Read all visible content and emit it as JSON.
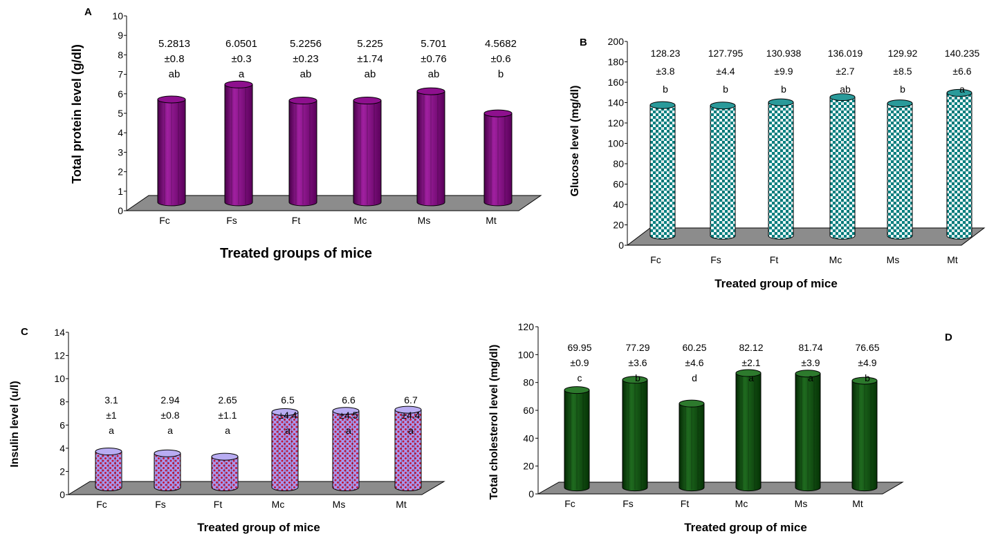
{
  "chart_data": [
    {
      "panel": "A",
      "type": "bar",
      "categories": [
        "Fc",
        "Fs",
        "Ft",
        "Mc",
        "Ms",
        "Mt"
      ],
      "values": [
        5.2813,
        6.0501,
        5.2256,
        5.225,
        5.701,
        4.5682
      ],
      "value_labels": [
        "5.2813",
        "6.0501",
        "5.2256",
        "5.225",
        "5.701",
        "4.5682"
      ],
      "errors": [
        "±0.8",
        "±0.3",
        "±0.23",
        "±1.74",
        "±0.76",
        "±0.6"
      ],
      "letters": [
        "ab",
        "a",
        "ab",
        "ab",
        "ab",
        "b"
      ],
      "ylabel": "Total protein level (g/dl)",
      "xlabel": "Treated groups of mice",
      "ylim": [
        0,
        10
      ],
      "yticks": [
        "0",
        "1",
        "2",
        "3",
        "4",
        "5",
        "6",
        "7",
        "8",
        "9",
        "10"
      ],
      "bar_color": "#800080",
      "bar_style": "solid 3D cylinder",
      "floor_color": "#8c8c8c"
    },
    {
      "panel": "B",
      "type": "bar",
      "categories": [
        "Fc",
        "Fs",
        "Ft",
        "Mc",
        "Ms",
        "Mt"
      ],
      "values": [
        128.23,
        127.795,
        130.938,
        136.019,
        129.92,
        140.235
      ],
      "value_labels": [
        "128.23",
        "127.795",
        "130.938",
        "136.019",
        "129.92",
        "140.235"
      ],
      "errors": [
        "±3.8",
        "±4.4",
        "±9.9",
        "±2.7",
        "±8.5",
        "±6.6"
      ],
      "letters": [
        "b",
        "b",
        "b",
        "ab",
        "b",
        "a"
      ],
      "ylabel": "Glucose level (mg/dl)",
      "xlabel": "Treated group of mice",
      "ylim": [
        0,
        200
      ],
      "yticks": [
        "0",
        "20",
        "40",
        "60",
        "80",
        "100",
        "120",
        "140",
        "160",
        "180",
        "200"
      ],
      "bar_color": "#008080",
      "bar_style": "teal checkered 3D cylinder",
      "floor_color": "#8c8c8c"
    },
    {
      "panel": "C",
      "type": "bar",
      "categories": [
        "Fc",
        "Fs",
        "Ft",
        "Mc",
        "Ms",
        "Mt"
      ],
      "values": [
        3.1,
        2.94,
        2.65,
        6.5,
        6.6,
        6.7
      ],
      "value_labels": [
        "3.1",
        "2.94",
        "2.65",
        "6.5",
        "6.6",
        "6.7"
      ],
      "errors": [
        "±1",
        "±0.8",
        "±1.1",
        "±4.4",
        "±4.5",
        "±4.4"
      ],
      "letters": [
        "a",
        "a",
        "a",
        "a",
        "a",
        "a"
      ],
      "ylabel": "Insulin level (u/l)",
      "xlabel": "Treated group of mice",
      "ylim": [
        0,
        14
      ],
      "yticks": [
        "0",
        "2",
        "4",
        "6",
        "8",
        "10",
        "12",
        "14"
      ],
      "bar_color": "#9a8ce0",
      "bar_style": "lavender dotted 3D cylinder",
      "floor_color": "#8c8c8c"
    },
    {
      "panel": "D",
      "type": "bar",
      "categories": [
        "Fc",
        "Fs",
        "Ft",
        "Mc",
        "Ms",
        "Mt"
      ],
      "values": [
        69.95,
        77.29,
        60.25,
        82.12,
        81.74,
        76.65
      ],
      "value_labels": [
        "69.95",
        "77.29",
        "60.25",
        "82.12",
        "81.74",
        "76.65"
      ],
      "errors": [
        "±0.9",
        "±3.6",
        "±4.6",
        "±2.1",
        "±3.9",
        "±4.9"
      ],
      "letters": [
        "c",
        "b",
        "d",
        "a",
        "a",
        "b"
      ],
      "ylabel": "Total cholesterol level (mg/dl)",
      "xlabel": "Treated group of mice",
      "ylim": [
        0,
        120
      ],
      "yticks": [
        "0",
        "20",
        "40",
        "60",
        "80",
        "100",
        "120"
      ],
      "bar_color": "#0d4a0d",
      "bar_style": "solid dark green 3D cylinder",
      "floor_color": "#8c8c8c"
    }
  ]
}
